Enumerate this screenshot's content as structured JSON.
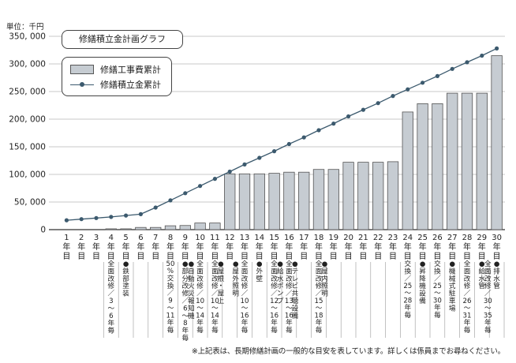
{
  "unit_label": "単位：千円",
  "footnote": "※上記表は、長期修繕計画の一般的な目安を表しています。詳しくは係員までお尋ねください。",
  "chart_data": {
    "type": "bar",
    "title": "修繕積立金計画グラフ",
    "xlabel": "",
    "ylabel": "",
    "ylim": [
      0,
      350000
    ],
    "yticks": [
      0,
      50000,
      100000,
      150000,
      200000,
      250000,
      300000,
      350000
    ],
    "ytick_labels": [
      "0",
      "50, 000",
      "100, 000",
      "150, 000",
      "200, 000",
      "250, 000",
      "300, 000",
      "350, 000"
    ],
    "grid": true,
    "legend_placement": "top-left",
    "categories": [
      "1\n年\n目",
      "2\n年\n目",
      "3\n年\n目",
      "4\n年\n目",
      "5\n年\n目",
      "6\n年\n目",
      "7\n年\n目",
      "8\n年\n目",
      "9\n年\n目",
      "10\n年\n目",
      "11\n年\n目",
      "12\n年\n目",
      "13\n年\n目",
      "14\n年\n目",
      "15\n年\n目",
      "16\n年\n目",
      "17\n年\n目",
      "18\n年\n目",
      "19\n年\n目",
      "20\n年\n目",
      "21\n年\n目",
      "22\n年\n目",
      "23\n年\n目",
      "24\n年\n目",
      "25\n年\n目",
      "26\n年\n目",
      "27\n年\n目",
      "28\n年\n目",
      "29\n年\n目",
      "30\n年\n目"
    ],
    "series": [
      {
        "name": "修繕工事費累計",
        "kind": "bar",
        "color": "#c6ccd2",
        "values": [
          0,
          0,
          0,
          1500,
          1500,
          4000,
          4000,
          7000,
          7500,
          12000,
          12000,
          101000,
          101000,
          101000,
          102000,
          104000,
          104000,
          109000,
          109000,
          122000,
          122000,
          122000,
          123000,
          213000,
          228000,
          228000,
          247000,
          247000,
          247000,
          315000
        ]
      },
      {
        "name": "修繕積立金累計",
        "kind": "line",
        "color": "#3c5a6e",
        "values": [
          17000,
          19000,
          21000,
          23000,
          25500,
          28000,
          40000,
          53000,
          66000,
          79000,
          92000,
          105000,
          118000,
          130000,
          142000,
          155000,
          167000,
          180000,
          192000,
          205000,
          217000,
          229000,
          242000,
          254000,
          266000,
          278000,
          291000,
          303000,
          315000,
          328000
        ]
      }
    ],
    "annotations": [
      {
        "col": 4,
        "lines": [
          "全",
          "面",
          "改",
          "修",
          "／",
          "3",
          "〜",
          "6",
          "年",
          "毎"
        ]
      },
      {
        "col": 5,
        "lines": [
          "●",
          "鉄",
          "部",
          "塗",
          "装"
        ]
      },
      {
        "col": 8,
        "lines": [
          "50",
          "%",
          "交",
          "換",
          "／",
          "9",
          "〜",
          "11",
          "年",
          "毎"
        ]
      },
      {
        "col": 9,
        "lines": [
          "●",
          "部",
          "分",
          "改",
          "修",
          "／",
          "6",
          "〜",
          "8",
          "年",
          "毎"
        ]
      },
      {
        "col": 9.5,
        "lines": [
          "●",
          "自",
          "動",
          "火",
          "災",
          "報",
          "知",
          "機"
        ]
      },
      {
        "col": 10,
        "lines": [
          "全",
          "面",
          "改",
          "修",
          "／",
          "10",
          "〜",
          "14",
          "年",
          "毎"
        ]
      },
      {
        "col": 11,
        "lines": [
          "全",
          "面",
          "改",
          "修",
          "／",
          "10",
          "〜",
          "14",
          "年",
          "毎"
        ]
      },
      {
        "col": 11.5,
        "lines": [
          "●",
          "屋",
          "根",
          "・",
          "屋",
          "上"
        ]
      },
      {
        "col": 12.5,
        "lines": [
          "●",
          "屋",
          "外",
          "照",
          "明"
        ]
      },
      {
        "col": 13,
        "lines": [
          "全",
          "面",
          "改",
          "修",
          "／",
          "10",
          "〜",
          "16",
          "年",
          "毎"
        ]
      },
      {
        "col": 14,
        "lines": [
          "●",
          "外",
          "壁"
        ]
      },
      {
        "col": 15,
        "lines": [
          "全",
          "面",
          "改",
          "修",
          "／",
          "12",
          "〜",
          "16",
          "年",
          "毎"
        ]
      },
      {
        "col": 15.5,
        "lines": [
          "●",
          "給",
          "水",
          "ポ",
          "ン",
          "プ"
        ]
      },
      {
        "col": 16,
        "lines": [
          "全",
          "面",
          "改",
          "修",
          "／",
          "13",
          "〜",
          "16",
          "年",
          "毎"
        ]
      },
      {
        "col": 16.5,
        "lines": [
          "●",
          "テ",
          "レ",
          "ビ",
          "共",
          "聴",
          "設",
          "備"
        ]
      },
      {
        "col": 18,
        "lines": [
          "全",
          "面",
          "改",
          "修",
          "／",
          "15",
          "〜",
          "18",
          "年",
          "毎"
        ]
      },
      {
        "col": 18.5,
        "lines": [
          "●",
          "屋",
          "内",
          "照",
          "明"
        ]
      },
      {
        "col": 24,
        "lines": [
          "交",
          "換",
          "／",
          "25",
          "〜",
          "28",
          "年",
          "毎"
        ]
      },
      {
        "col": 25,
        "lines": [
          "●",
          "昇",
          "降",
          "機",
          "設",
          "備"
        ]
      },
      {
        "col": 26,
        "lines": [
          "交",
          "換",
          "／",
          "25",
          "〜",
          "30",
          "年",
          "毎"
        ]
      },
      {
        "col": 27,
        "lines": [
          "●",
          "機",
          "械",
          "式",
          "駐",
          "車",
          "場"
        ]
      },
      {
        "col": 28,
        "lines": [
          "全",
          "面",
          "改",
          "修",
          "／",
          "26",
          "〜",
          "31",
          "年",
          "毎"
        ]
      },
      {
        "col": 29,
        "lines": [
          "●",
          "給",
          "水",
          "管"
        ]
      },
      {
        "col": 29.5,
        "lines": [
          "全",
          "面",
          "改",
          "修",
          "／",
          "30",
          "〜",
          "35",
          "年",
          "毎"
        ]
      },
      {
        "col": 30,
        "lines": [
          "●",
          "排",
          "水",
          "管"
        ]
      }
    ]
  }
}
